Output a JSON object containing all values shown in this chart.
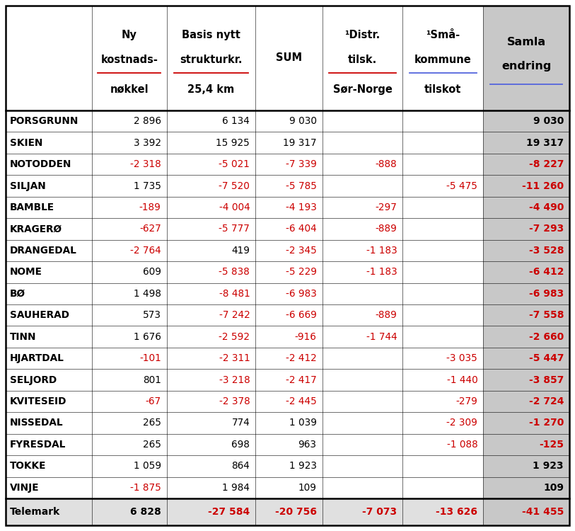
{
  "headers_line1": [
    "",
    "Ny",
    "Basis nytt",
    "SUM",
    "¹Distr.",
    "¹Små-",
    "Samla"
  ],
  "headers_line2": [
    "",
    "kostnads-",
    "strukturkr.",
    "",
    "tilsk.",
    "kommune",
    "endring"
  ],
  "headers_line3": [
    "",
    "nøkkel",
    "25,4 km",
    "",
    "Sør-Norge",
    "tilskot",
    ""
  ],
  "headers_underline": [
    false,
    true,
    true,
    false,
    false,
    true,
    true
  ],
  "headers_underline_color": [
    "",
    "#CC0000",
    "#CC0000",
    "",
    "",
    "#5566DD",
    "#5566DD"
  ],
  "rows": [
    [
      "PORSGRUNN",
      "2 896",
      "6 134",
      "9 030",
      "",
      "",
      "9 030"
    ],
    [
      "SKIEN",
      "3 392",
      "15 925",
      "19 317",
      "",
      "",
      "19 317"
    ],
    [
      "NOTODDEN",
      "-2 318",
      "-5 021",
      "-7 339",
      "-888",
      "",
      "-8 227"
    ],
    [
      "SILJAN",
      "1 735",
      "-7 520",
      "-5 785",
      "",
      "-5 475",
      "-11 260"
    ],
    [
      "BAMBLE",
      "-189",
      "-4 004",
      "-4 193",
      "-297",
      "",
      "-4 490"
    ],
    [
      "KRAGERØ",
      "-627",
      "-5 777",
      "-6 404",
      "-889",
      "",
      "-7 293"
    ],
    [
      "DRANGEDAL",
      "-2 764",
      "419",
      "-2 345",
      "-1 183",
      "",
      "-3 528"
    ],
    [
      "NOME",
      "609",
      "-5 838",
      "-5 229",
      "-1 183",
      "",
      "-6 412"
    ],
    [
      "BØ",
      "1 498",
      "-8 481",
      "-6 983",
      "",
      "",
      "-6 983"
    ],
    [
      "SAUHERAD",
      "573",
      "-7 242",
      "-6 669",
      "-889",
      "",
      "-7 558"
    ],
    [
      "TINN",
      "1 676",
      "-2 592",
      "-916",
      "-1 744",
      "",
      "-2 660"
    ],
    [
      "HJARTDAL",
      "-101",
      "-2 311",
      "-2 412",
      "",
      "-3 035",
      "-5 447"
    ],
    [
      "SELJORD",
      "801",
      "-3 218",
      "-2 417",
      "",
      "-1 440",
      "-3 857"
    ],
    [
      "KVITESEID",
      "-67",
      "-2 378",
      "-2 445",
      "",
      "-279",
      "-2 724"
    ],
    [
      "NISSEDAL",
      "265",
      "774",
      "1 039",
      "",
      "-2 309",
      "-1 270"
    ],
    [
      "FYRESDAL",
      "265",
      "698",
      "963",
      "",
      "-1 088",
      "-125"
    ],
    [
      "TOKKE",
      "1 059",
      "864",
      "1 923",
      "",
      "",
      "1 923"
    ],
    [
      "VINJE",
      "-1 875",
      "1 984",
      "109",
      "",
      "",
      "109"
    ]
  ],
  "footer": [
    "Telemark",
    "6 828",
    "-27 584",
    "-20 756",
    "-7 073",
    "-13 626",
    "-41 455"
  ],
  "col_widths_rel": [
    1.55,
    1.35,
    1.6,
    1.2,
    1.45,
    1.45,
    1.55
  ],
  "red_color": "#CC0000",
  "black_color": "#000000",
  "header_bg": "#FFFFFF",
  "last_col_header_bg": "#C8C8C8",
  "last_col_data_bg": "#C8C8C8",
  "footer_bg": "#E0E0E0",
  "footer_last_col_bg": "#C8C8C8",
  "data_bg": "#FFFFFF",
  "border_color": "#000000",
  "thin_line": 0.4,
  "thick_line": 1.8
}
